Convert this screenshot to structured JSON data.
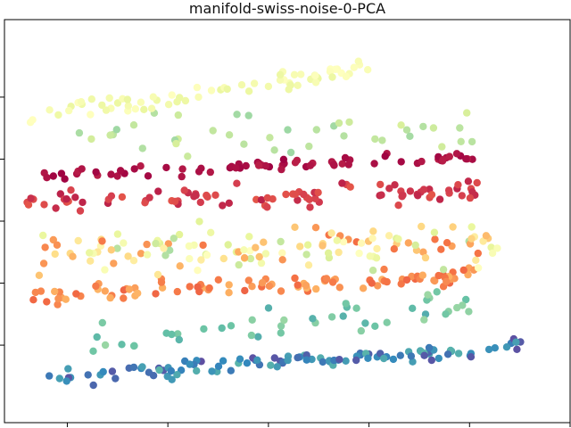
{
  "chart_data": {
    "type": "scatter",
    "title": "manifold-swiss-noise-0-PCA",
    "xlabel": "",
    "ylabel": "",
    "xlim": [
      -1.05,
      1.2
    ],
    "ylim": [
      -1.3,
      1.3
    ],
    "x_ticks": [
      -0.8,
      -0.4,
      0.0,
      0.4,
      0.8,
      1.2
    ],
    "y_ticks": [
      -0.8,
      -0.4,
      0.0,
      0.4,
      0.8
    ],
    "tick_labels_visible": false,
    "grid": false,
    "legend": "none",
    "colormap": "Spectral",
    "color_stops": [
      "#9e0142",
      "#d53e4f",
      "#f46d43",
      "#fdae61",
      "#fee08b",
      "#ffffbf",
      "#e6f598",
      "#abdda4",
      "#66c2a5",
      "#3288bd",
      "#5e4fa2"
    ],
    "point_count": 650,
    "bands": [
      {
        "name": "bottom",
        "color_range": [
          0.82,
          1.0
        ],
        "x_range": [
          -0.88,
          1.02
        ],
        "y_at_xmin": -1.02,
        "y_at_xmax": -0.8,
        "spread": 0.08,
        "count": 110
      },
      {
        "name": "teal",
        "color_range": [
          0.72,
          0.84
        ],
        "x_range": [
          -0.7,
          0.8
        ],
        "y_at_xmin": -0.78,
        "y_at_xmax": -0.55,
        "spread": 0.18,
        "count": 45
      },
      {
        "name": "orange",
        "color_range": [
          0.18,
          0.32
        ],
        "x_range": [
          -0.94,
          0.85
        ],
        "y_at_xmin": -0.48,
        "y_at_xmax": -0.35,
        "spread": 0.08,
        "count": 95
      },
      {
        "name": "mixed-middle",
        "color_range": [
          0.2,
          0.7
        ],
        "x_range": [
          -0.92,
          0.92
        ],
        "y_at_xmin": -0.2,
        "y_at_xmax": -0.15,
        "spread": 0.22,
        "count": 130
      },
      {
        "name": "red",
        "color_range": [
          0.05,
          0.15
        ],
        "x_range": [
          -0.96,
          0.84
        ],
        "y_at_xmin": 0.12,
        "y_at_xmax": 0.2,
        "spread": 0.1,
        "count": 90
      },
      {
        "name": "crimson",
        "color_range": [
          0.0,
          0.05
        ],
        "x_range": [
          -0.92,
          0.84
        ],
        "y_at_xmin": 0.28,
        "y_at_xmax": 0.42,
        "spread": 0.06,
        "count": 70
      },
      {
        "name": "mint",
        "color_range": [
          0.62,
          0.72
        ],
        "x_range": [
          -0.78,
          0.86
        ],
        "y_at_xmin": 0.55,
        "y_at_xmax": 0.55,
        "spread": 0.2,
        "count": 40
      },
      {
        "name": "pale-yellow",
        "color_range": [
          0.5,
          0.58
        ],
        "x_range": [
          -1.02,
          0.4
        ],
        "y_at_xmin": 0.65,
        "y_at_xmax": 1.0,
        "spread": 0.1,
        "count": 70
      }
    ]
  }
}
